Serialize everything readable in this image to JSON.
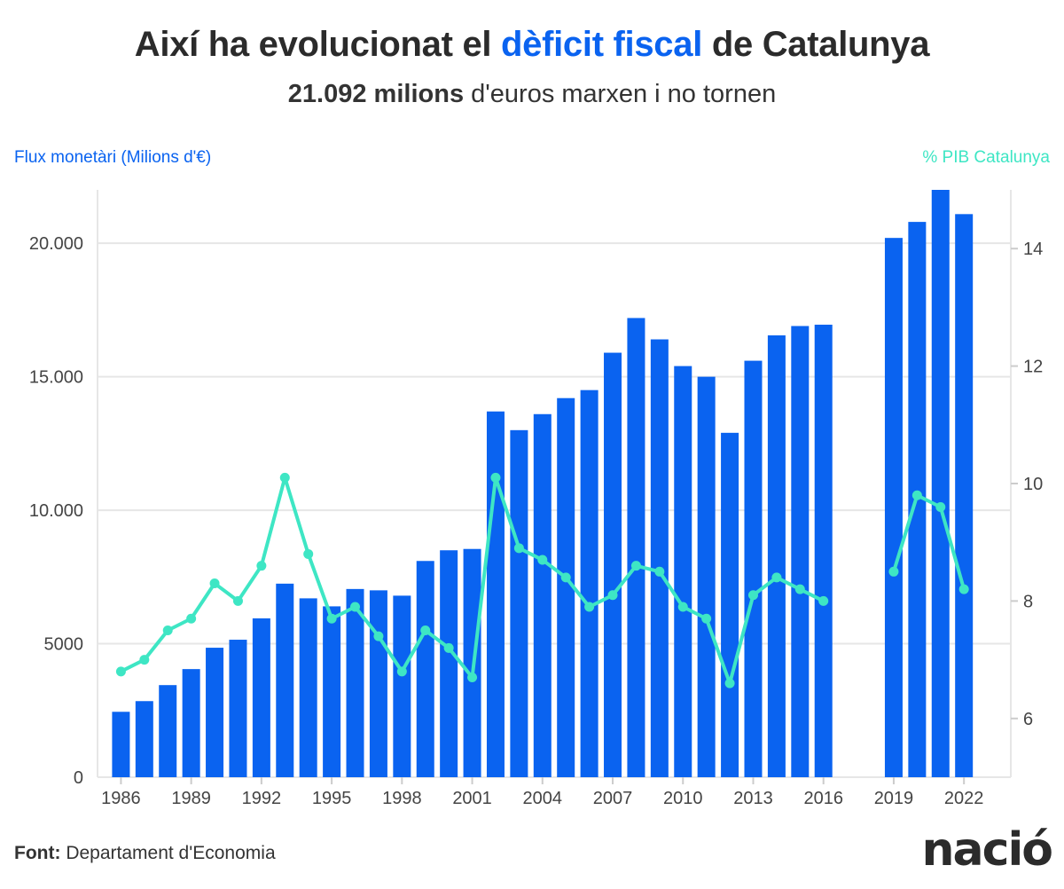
{
  "header": {
    "title_prefix": "Així ha evolucionat el ",
    "title_highlight": "dèficit fiscal",
    "title_suffix": " de Catalunya",
    "subtitle_strong": "21.092 milions",
    "subtitle_rest": " d'euros marxen i no tornen"
  },
  "footer": {
    "source_label": "Font:",
    "source_text": " Departament d'Economia",
    "logo": "nació"
  },
  "colors": {
    "bar": "#0a63f0",
    "line": "#3ee6c4",
    "grid": "#e6e6e6",
    "highlight": "#0a63f0"
  },
  "chart_data": {
    "type": "bar",
    "title": "Així ha evolucionat el dèficit fiscal de Catalunya",
    "subtitle": "21.092 milions d'euros marxen i no tornen",
    "ylabel": "Flux monetàri (Milions d'€)",
    "y2label": "% PIB Catalunya",
    "xlim": [
      1985,
      2024
    ],
    "ylim": [
      0,
      22000
    ],
    "y2lim": [
      5,
      15
    ],
    "yticks": [
      {
        "value": 0,
        "label": "0"
      },
      {
        "value": 5000,
        "label": "5000"
      },
      {
        "value": 10000,
        "label": "10.000"
      },
      {
        "value": 15000,
        "label": "15.000"
      },
      {
        "value": 20000,
        "label": "20.000"
      }
    ],
    "y2ticks": [
      {
        "value": 6,
        "label": "6"
      },
      {
        "value": 8,
        "label": "8"
      },
      {
        "value": 10,
        "label": "10"
      },
      {
        "value": 12,
        "label": "12"
      },
      {
        "value": 14,
        "label": "14"
      }
    ],
    "xticks": [
      1986,
      1989,
      1992,
      1995,
      1998,
      2001,
      2004,
      2007,
      2010,
      2013,
      2016,
      2019,
      2022
    ],
    "grid": true,
    "series": [
      {
        "name": "Flux monetàri (Milions d'€)",
        "type": "bar",
        "axis": "left",
        "x": [
          1986,
          1987,
          1988,
          1989,
          1990,
          1991,
          1992,
          1993,
          1994,
          1995,
          1996,
          1997,
          1998,
          1999,
          2000,
          2001,
          2002,
          2003,
          2004,
          2005,
          2006,
          2007,
          2008,
          2009,
          2010,
          2011,
          2012,
          2013,
          2014,
          2015,
          2016,
          2019,
          2020,
          2021,
          2022
        ],
        "values": [
          2450,
          2850,
          3450,
          4050,
          4850,
          5150,
          5950,
          7250,
          6700,
          6400,
          7050,
          7000,
          6800,
          8100,
          8500,
          8550,
          13700,
          13000,
          13600,
          14200,
          14500,
          15900,
          17200,
          16400,
          15400,
          15000,
          12900,
          15600,
          16550,
          16900,
          16950,
          20200,
          20800,
          22000,
          21092
        ]
      },
      {
        "name": "% PIB Catalunya",
        "type": "line",
        "axis": "right",
        "x": [
          1986,
          1987,
          1988,
          1989,
          1990,
          1991,
          1992,
          1993,
          1994,
          1995,
          1996,
          1997,
          1998,
          1999,
          2000,
          2001,
          2002,
          2003,
          2004,
          2005,
          2006,
          2007,
          2008,
          2009,
          2010,
          2011,
          2012,
          2013,
          2014,
          2015,
          2016,
          2019,
          2020,
          2021,
          2022
        ],
        "values": [
          6.8,
          7.0,
          7.5,
          7.7,
          8.3,
          8.0,
          8.6,
          10.1,
          8.8,
          7.7,
          7.9,
          7.4,
          6.8,
          7.5,
          7.2,
          6.7,
          10.1,
          8.9,
          8.7,
          8.4,
          7.9,
          8.1,
          8.6,
          8.5,
          7.9,
          7.7,
          6.6,
          8.1,
          8.4,
          8.2,
          8.0,
          8.5,
          9.8,
          9.6,
          8.2
        ]
      }
    ]
  }
}
